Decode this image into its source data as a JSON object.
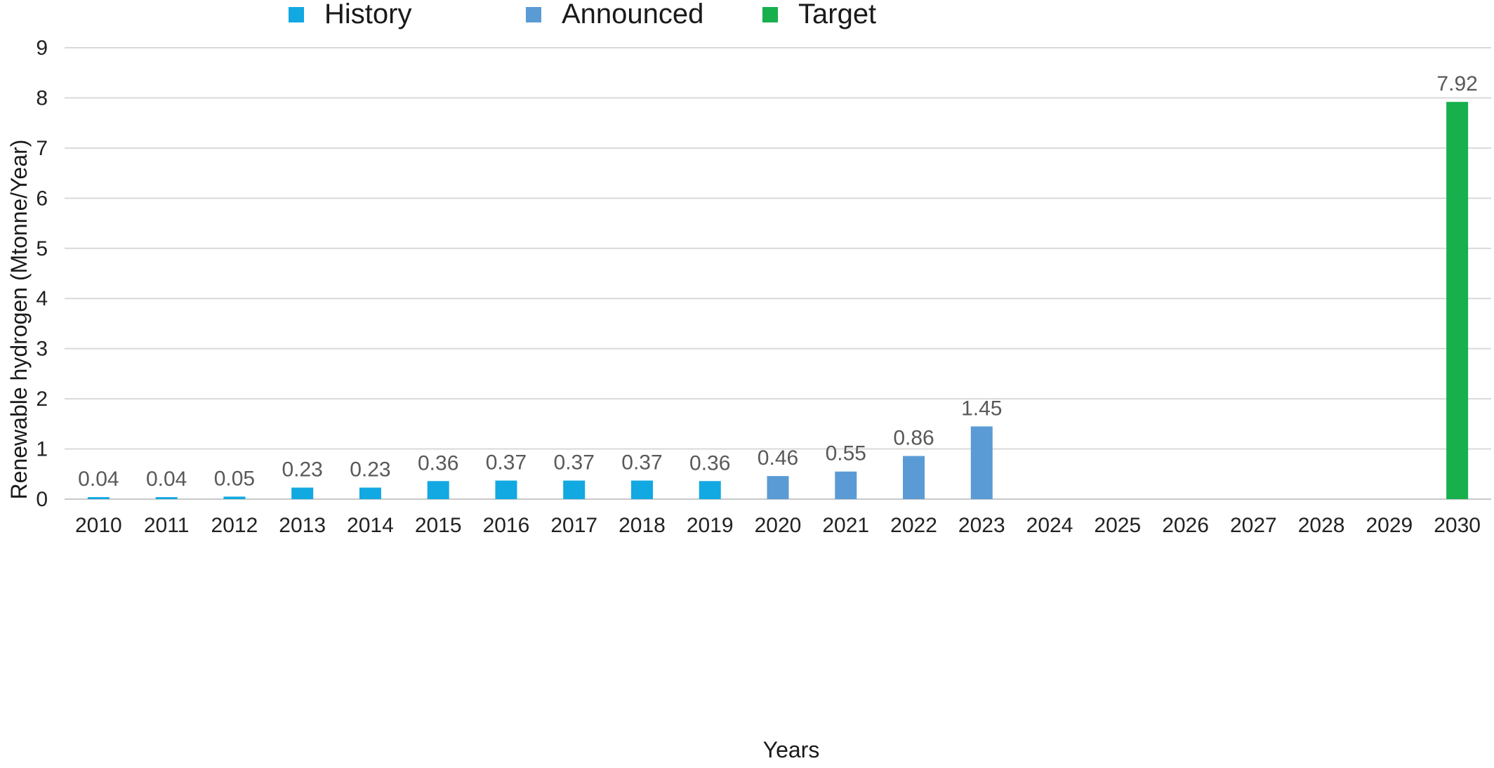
{
  "chart_data": {
    "type": "bar",
    "title": "",
    "xlabel": "Years",
    "ylabel": "Renewable hydrogen (Mtonne/Year)",
    "ylim": [
      0,
      9
    ],
    "yticks": [
      0,
      1,
      2,
      3,
      4,
      5,
      6,
      7,
      8,
      9
    ],
    "grid": true,
    "legend_position": "top",
    "categories": [
      "2010",
      "2011",
      "2012",
      "2013",
      "2014",
      "2015",
      "2016",
      "2017",
      "2018",
      "2019",
      "2020",
      "2021",
      "2022",
      "2023",
      "2024",
      "2025",
      "2026",
      "2027",
      "2028",
      "2029",
      "2030"
    ],
    "series": [
      {
        "name": "History",
        "color": "#12a8e2",
        "values": [
          0.04,
          0.04,
          0.05,
          0.23,
          0.23,
          0.36,
          0.37,
          0.37,
          0.37,
          0.36,
          null,
          null,
          null,
          null,
          null,
          null,
          null,
          null,
          null,
          null,
          null
        ],
        "labels": [
          "0.04",
          "0.04",
          "0.05",
          "0.23",
          "0.23",
          "0.36",
          "0.37",
          "0.37",
          "0.37",
          "0.36",
          null,
          null,
          null,
          null,
          null,
          null,
          null,
          null,
          null,
          null,
          null
        ]
      },
      {
        "name": "Announced",
        "color": "#5b9bd5",
        "values": [
          null,
          null,
          null,
          null,
          null,
          null,
          null,
          null,
          null,
          null,
          0.46,
          0.55,
          0.86,
          1.45,
          null,
          null,
          null,
          null,
          null,
          null,
          null
        ],
        "labels": [
          null,
          null,
          null,
          null,
          null,
          null,
          null,
          null,
          null,
          null,
          "0.46",
          "0.55",
          "0.86",
          "1.45",
          null,
          null,
          null,
          null,
          null,
          null,
          null
        ]
      },
      {
        "name": "Target",
        "color": "#17b04d",
        "values": [
          null,
          null,
          null,
          null,
          null,
          null,
          null,
          null,
          null,
          null,
          null,
          null,
          null,
          null,
          null,
          null,
          null,
          null,
          null,
          null,
          7.92
        ],
        "labels": [
          null,
          null,
          null,
          null,
          null,
          null,
          null,
          null,
          null,
          null,
          null,
          null,
          null,
          null,
          null,
          null,
          null,
          null,
          null,
          null,
          "7.92"
        ]
      }
    ]
  }
}
